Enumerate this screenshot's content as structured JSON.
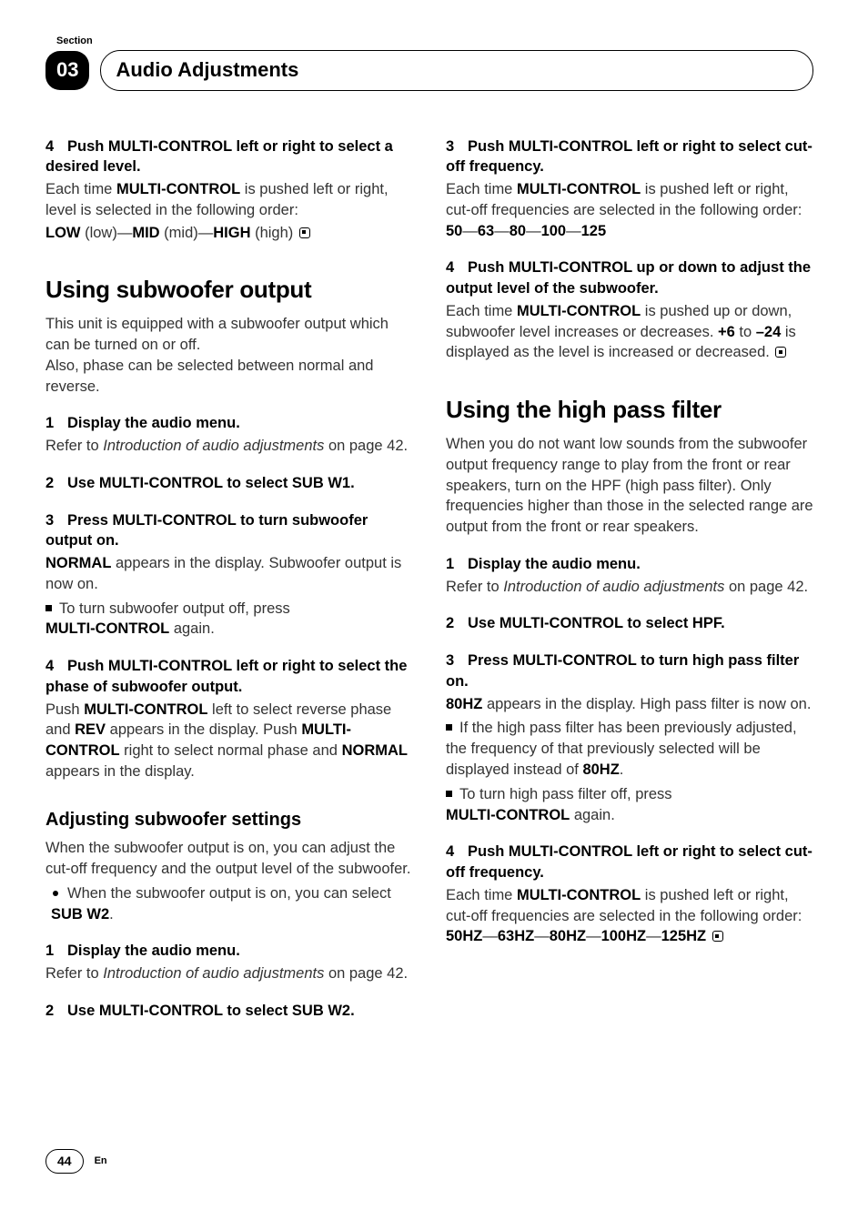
{
  "header": {
    "section_label": "Section",
    "section_number": "03",
    "chapter_title": "Audio Adjustments"
  },
  "left": {
    "s4": {
      "heading_num": "4",
      "heading": "Push MULTI-CONTROL left or right to select a desired level.",
      "p1": "Each time <b>MULTI-CONTROL</b> is pushed left or right, level is selected in the following order:",
      "p2": "<b>LOW</b> (low)—<b>MID</b> (mid)—<b>HIGH</b> (high)"
    },
    "h1a": "Using subwoofer output",
    "intro1": "This unit is equipped with a subwoofer output which can be turned on or off.",
    "intro2": "Also, phase can be selected between normal and reverse.",
    "st1": {
      "num": "1",
      "heading": "Display the audio menu.",
      "p": "Refer to <span class=\"italic\">Introduction of audio adjustments</span> on page 42."
    },
    "st2": {
      "num": "2",
      "heading": "Use MULTI-CONTROL to select SUB W1."
    },
    "st3": {
      "num": "3",
      "heading": "Press MULTI-CONTROL to turn subwoofer output on.",
      "p": "<b>NORMAL</b> appears in the display. Subwoofer output is now on.",
      "bullet": "To turn subwoofer output off, press",
      "bullet2": "<b>MULTI-CONTROL</b> again."
    },
    "st4": {
      "num": "4",
      "heading": "Push MULTI-CONTROL left or right to select the phase of subwoofer output.",
      "p": "Push <b>MULTI-CONTROL</b> left to select reverse phase and <b>REV</b> appears in the display. Push <b>MULTI-CONTROL</b> right to select normal phase and <b>NORMAL</b> appears in the display."
    },
    "h2a": "Adjusting subwoofer settings",
    "adj_p": "When the subwoofer output is on, you can adjust the cut-off frequency and the output level of the subwoofer.",
    "adj_bullet": "When the subwoofer output is on, you can select <b>SUB W2</b>.",
    "adj1": {
      "num": "1",
      "heading": "Display the audio menu.",
      "p": "Refer to <span class=\"italic\">Introduction of audio adjustments</span> on page 42."
    },
    "adj2": {
      "num": "2",
      "heading": "Use MULTI-CONTROL to select SUB W2."
    }
  },
  "right": {
    "r3": {
      "num": "3",
      "heading": "Push MULTI-CONTROL left or right to select cut-off frequency.",
      "p": "Each time <b>MULTI-CONTROL</b> is pushed left or right, cut-off frequencies are selected in the following order:",
      "p2": "<b>50</b>—<b>63</b>—<b>80</b>—<b>100</b>—<b>125</b>"
    },
    "r4": {
      "num": "4",
      "heading": "Push MULTI-CONTROL up or down to adjust the output level of the subwoofer.",
      "p": "Each time <b>MULTI-CONTROL</b> is pushed up or down, subwoofer level increases or decreases. <b>+6</b> to <b>–24</b> is displayed as the level is increased or decreased."
    },
    "h1b": "Using the high pass filter",
    "hp_intro": "When you do not want low sounds from the subwoofer output frequency range to play from the front or rear speakers, turn on the HPF (high pass filter). Only frequencies higher than those in the selected range are output from the front or rear speakers.",
    "hp1": {
      "num": "1",
      "heading": "Display the audio menu.",
      "p": "Refer to <span class=\"italic\">Introduction of audio adjustments</span> on page 42."
    },
    "hp2": {
      "num": "2",
      "heading": "Use MULTI-CONTROL to select HPF."
    },
    "hp3": {
      "num": "3",
      "heading": "Press MULTI-CONTROL to turn high pass filter on.",
      "p": "<b>80HZ</b> appears in the display. High pass filter is now on.",
      "b1": "If the high pass filter has been previously adjusted, the frequency of that previously selected will be displayed instead of <b>80HZ</b>.",
      "b2": "To turn high pass filter off, press",
      "b2b": "<b>MULTI-CONTROL</b> again."
    },
    "hp4": {
      "num": "4",
      "heading": "Push MULTI-CONTROL left or right to select cut-off frequency.",
      "p": "Each time <b>MULTI-CONTROL</b> is pushed left or right, cut-off frequencies are selected in the following order:",
      "p2": "<b>50HZ</b>—<b>63HZ</b>—<b>80HZ</b>—<b>100HZ</b>—<b>125HZ</b>"
    }
  },
  "footer": {
    "page": "44",
    "lang": "En"
  }
}
